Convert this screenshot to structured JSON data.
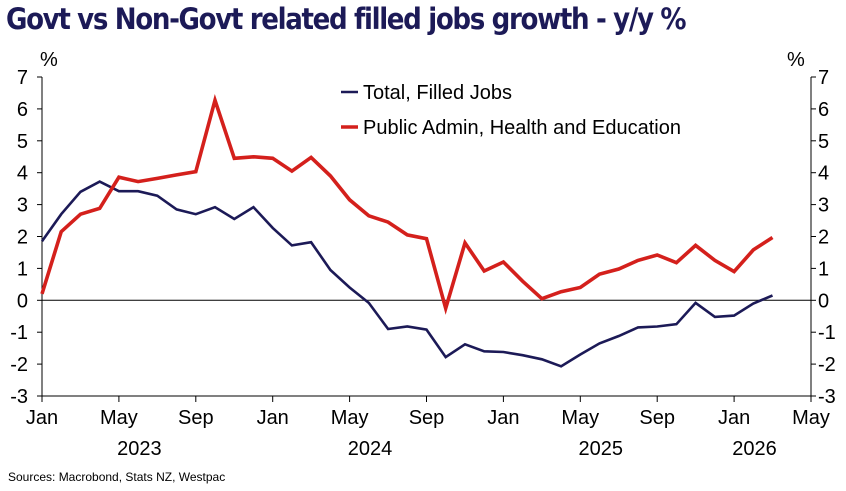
{
  "title": "Govt vs Non-Govt related filled jobs growth - y/y %",
  "source": "Sources: Macrobond, Stats NZ, Westpac",
  "chart_data": {
    "type": "line",
    "title": "Govt vs Non-Govt related filled jobs growth - y/y %",
    "y_unit_left": "%",
    "y_unit_right": "%",
    "ylim": [
      -3,
      7
    ],
    "y_ticks": [
      -3,
      -2,
      -1,
      0,
      1,
      2,
      3,
      4,
      5,
      6,
      7
    ],
    "x_range": [
      "2023-01",
      "2026-05"
    ],
    "x_ticks": [
      {
        "date": "2023-01",
        "label": "Jan"
      },
      {
        "date": "2023-05",
        "label": "May"
      },
      {
        "date": "2023-09",
        "label": "Sep"
      },
      {
        "date": "2024-01",
        "label": "Jan"
      },
      {
        "date": "2024-05",
        "label": "May"
      },
      {
        "date": "2024-09",
        "label": "Sep"
      },
      {
        "date": "2025-01",
        "label": "Jan"
      },
      {
        "date": "2025-05",
        "label": "May"
      },
      {
        "date": "2025-09",
        "label": "Sep"
      },
      {
        "date": "2026-01",
        "label": "Jan"
      },
      {
        "date": "2026-05",
        "label": "May"
      }
    ],
    "year_labels": [
      {
        "date": "2023-07",
        "label": "2023"
      },
      {
        "date": "2024-07",
        "label": "2024"
      },
      {
        "date": "2025-07",
        "label": "2025"
      },
      {
        "date": "2026-03",
        "label": "2026"
      }
    ],
    "grid": false,
    "zero_line": true,
    "legend_position": "top-center",
    "x": [
      "2023-01",
      "2023-02",
      "2023-03",
      "2023-04",
      "2023-05",
      "2023-06",
      "2023-07",
      "2023-08",
      "2023-09",
      "2023-10",
      "2023-11",
      "2023-12",
      "2024-01",
      "2024-02",
      "2024-03",
      "2024-04",
      "2024-05",
      "2024-06",
      "2024-07",
      "2024-08",
      "2024-09",
      "2024-10",
      "2024-11",
      "2024-12",
      "2025-01",
      "2025-02",
      "2025-03",
      "2025-04",
      "2025-05",
      "2025-06",
      "2025-07",
      "2025-08",
      "2025-09",
      "2025-10",
      "2025-11",
      "2025-12",
      "2026-01",
      "2026-02",
      "2026-03",
      "2026-04"
    ],
    "series": [
      {
        "name": "Total, Filled Jobs",
        "color": "#1c1a57",
        "values": [
          1.85,
          2.7,
          3.4,
          3.72,
          3.42,
          3.42,
          3.28,
          2.85,
          2.7,
          2.92,
          2.55,
          2.92,
          2.27,
          1.72,
          1.82,
          0.95,
          0.4,
          -0.08,
          -0.9,
          -0.82,
          -0.92,
          -1.78,
          -1.38,
          -1.6,
          -1.62,
          -1.72,
          -1.85,
          -2.07,
          -1.7,
          -1.35,
          -1.12,
          -0.85,
          -0.82,
          -0.75,
          -0.08,
          -0.52,
          -0.48,
          -0.1,
          0.15,
          null
        ]
      },
      {
        "name": "Public Admin, Health and Education",
        "color": "#d4201c",
        "values": [
          0.2,
          2.15,
          2.7,
          2.88,
          3.86,
          3.72,
          3.82,
          3.93,
          4.03,
          6.27,
          4.45,
          4.5,
          4.45,
          4.05,
          4.48,
          3.9,
          3.15,
          2.65,
          2.45,
          2.05,
          1.93,
          -0.25,
          1.8,
          0.92,
          1.2,
          0.6,
          0.05,
          0.27,
          0.4,
          0.82,
          0.98,
          1.25,
          1.42,
          1.18,
          1.72,
          1.25,
          0.9,
          1.58,
          1.97,
          null
        ]
      }
    ]
  }
}
